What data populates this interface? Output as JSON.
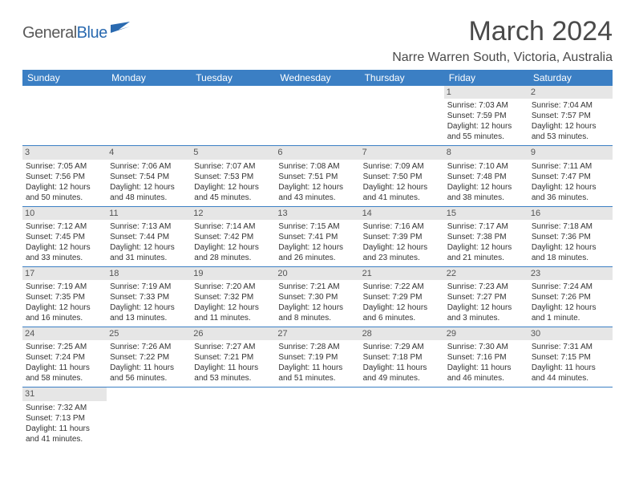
{
  "logo": {
    "text1": "General",
    "text2": "Blue"
  },
  "title": "March 2024",
  "location": "Narre Warren South, Victoria, Australia",
  "colors": {
    "header_bg": "#3b7fc4",
    "header_text": "#ffffff",
    "daynum_bg": "#e6e6e6",
    "cell_border": "#3b7fc4",
    "page_bg": "#ffffff",
    "title_color": "#4a4a4a",
    "text_color": "#333333"
  },
  "day_headers": [
    "Sunday",
    "Monday",
    "Tuesday",
    "Wednesday",
    "Thursday",
    "Friday",
    "Saturday"
  ],
  "weeks": [
    [
      {
        "n": "",
        "sr": "",
        "ss": "",
        "dl": ""
      },
      {
        "n": "",
        "sr": "",
        "ss": "",
        "dl": ""
      },
      {
        "n": "",
        "sr": "",
        "ss": "",
        "dl": ""
      },
      {
        "n": "",
        "sr": "",
        "ss": "",
        "dl": ""
      },
      {
        "n": "",
        "sr": "",
        "ss": "",
        "dl": ""
      },
      {
        "n": "1",
        "sr": "Sunrise: 7:03 AM",
        "ss": "Sunset: 7:59 PM",
        "dl": "Daylight: 12 hours and 55 minutes."
      },
      {
        "n": "2",
        "sr": "Sunrise: 7:04 AM",
        "ss": "Sunset: 7:57 PM",
        "dl": "Daylight: 12 hours and 53 minutes."
      }
    ],
    [
      {
        "n": "3",
        "sr": "Sunrise: 7:05 AM",
        "ss": "Sunset: 7:56 PM",
        "dl": "Daylight: 12 hours and 50 minutes."
      },
      {
        "n": "4",
        "sr": "Sunrise: 7:06 AM",
        "ss": "Sunset: 7:54 PM",
        "dl": "Daylight: 12 hours and 48 minutes."
      },
      {
        "n": "5",
        "sr": "Sunrise: 7:07 AM",
        "ss": "Sunset: 7:53 PM",
        "dl": "Daylight: 12 hours and 45 minutes."
      },
      {
        "n": "6",
        "sr": "Sunrise: 7:08 AM",
        "ss": "Sunset: 7:51 PM",
        "dl": "Daylight: 12 hours and 43 minutes."
      },
      {
        "n": "7",
        "sr": "Sunrise: 7:09 AM",
        "ss": "Sunset: 7:50 PM",
        "dl": "Daylight: 12 hours and 41 minutes."
      },
      {
        "n": "8",
        "sr": "Sunrise: 7:10 AM",
        "ss": "Sunset: 7:48 PM",
        "dl": "Daylight: 12 hours and 38 minutes."
      },
      {
        "n": "9",
        "sr": "Sunrise: 7:11 AM",
        "ss": "Sunset: 7:47 PM",
        "dl": "Daylight: 12 hours and 36 minutes."
      }
    ],
    [
      {
        "n": "10",
        "sr": "Sunrise: 7:12 AM",
        "ss": "Sunset: 7:45 PM",
        "dl": "Daylight: 12 hours and 33 minutes."
      },
      {
        "n": "11",
        "sr": "Sunrise: 7:13 AM",
        "ss": "Sunset: 7:44 PM",
        "dl": "Daylight: 12 hours and 31 minutes."
      },
      {
        "n": "12",
        "sr": "Sunrise: 7:14 AM",
        "ss": "Sunset: 7:42 PM",
        "dl": "Daylight: 12 hours and 28 minutes."
      },
      {
        "n": "13",
        "sr": "Sunrise: 7:15 AM",
        "ss": "Sunset: 7:41 PM",
        "dl": "Daylight: 12 hours and 26 minutes."
      },
      {
        "n": "14",
        "sr": "Sunrise: 7:16 AM",
        "ss": "Sunset: 7:39 PM",
        "dl": "Daylight: 12 hours and 23 minutes."
      },
      {
        "n": "15",
        "sr": "Sunrise: 7:17 AM",
        "ss": "Sunset: 7:38 PM",
        "dl": "Daylight: 12 hours and 21 minutes."
      },
      {
        "n": "16",
        "sr": "Sunrise: 7:18 AM",
        "ss": "Sunset: 7:36 PM",
        "dl": "Daylight: 12 hours and 18 minutes."
      }
    ],
    [
      {
        "n": "17",
        "sr": "Sunrise: 7:19 AM",
        "ss": "Sunset: 7:35 PM",
        "dl": "Daylight: 12 hours and 16 minutes."
      },
      {
        "n": "18",
        "sr": "Sunrise: 7:19 AM",
        "ss": "Sunset: 7:33 PM",
        "dl": "Daylight: 12 hours and 13 minutes."
      },
      {
        "n": "19",
        "sr": "Sunrise: 7:20 AM",
        "ss": "Sunset: 7:32 PM",
        "dl": "Daylight: 12 hours and 11 minutes."
      },
      {
        "n": "20",
        "sr": "Sunrise: 7:21 AM",
        "ss": "Sunset: 7:30 PM",
        "dl": "Daylight: 12 hours and 8 minutes."
      },
      {
        "n": "21",
        "sr": "Sunrise: 7:22 AM",
        "ss": "Sunset: 7:29 PM",
        "dl": "Daylight: 12 hours and 6 minutes."
      },
      {
        "n": "22",
        "sr": "Sunrise: 7:23 AM",
        "ss": "Sunset: 7:27 PM",
        "dl": "Daylight: 12 hours and 3 minutes."
      },
      {
        "n": "23",
        "sr": "Sunrise: 7:24 AM",
        "ss": "Sunset: 7:26 PM",
        "dl": "Daylight: 12 hours and 1 minute."
      }
    ],
    [
      {
        "n": "24",
        "sr": "Sunrise: 7:25 AM",
        "ss": "Sunset: 7:24 PM",
        "dl": "Daylight: 11 hours and 58 minutes."
      },
      {
        "n": "25",
        "sr": "Sunrise: 7:26 AM",
        "ss": "Sunset: 7:22 PM",
        "dl": "Daylight: 11 hours and 56 minutes."
      },
      {
        "n": "26",
        "sr": "Sunrise: 7:27 AM",
        "ss": "Sunset: 7:21 PM",
        "dl": "Daylight: 11 hours and 53 minutes."
      },
      {
        "n": "27",
        "sr": "Sunrise: 7:28 AM",
        "ss": "Sunset: 7:19 PM",
        "dl": "Daylight: 11 hours and 51 minutes."
      },
      {
        "n": "28",
        "sr": "Sunrise: 7:29 AM",
        "ss": "Sunset: 7:18 PM",
        "dl": "Daylight: 11 hours and 49 minutes."
      },
      {
        "n": "29",
        "sr": "Sunrise: 7:30 AM",
        "ss": "Sunset: 7:16 PM",
        "dl": "Daylight: 11 hours and 46 minutes."
      },
      {
        "n": "30",
        "sr": "Sunrise: 7:31 AM",
        "ss": "Sunset: 7:15 PM",
        "dl": "Daylight: 11 hours and 44 minutes."
      }
    ],
    [
      {
        "n": "31",
        "sr": "Sunrise: 7:32 AM",
        "ss": "Sunset: 7:13 PM",
        "dl": "Daylight: 11 hours and 41 minutes."
      },
      {
        "n": "",
        "sr": "",
        "ss": "",
        "dl": ""
      },
      {
        "n": "",
        "sr": "",
        "ss": "",
        "dl": ""
      },
      {
        "n": "",
        "sr": "",
        "ss": "",
        "dl": ""
      },
      {
        "n": "",
        "sr": "",
        "ss": "",
        "dl": ""
      },
      {
        "n": "",
        "sr": "",
        "ss": "",
        "dl": ""
      },
      {
        "n": "",
        "sr": "",
        "ss": "",
        "dl": ""
      }
    ]
  ]
}
